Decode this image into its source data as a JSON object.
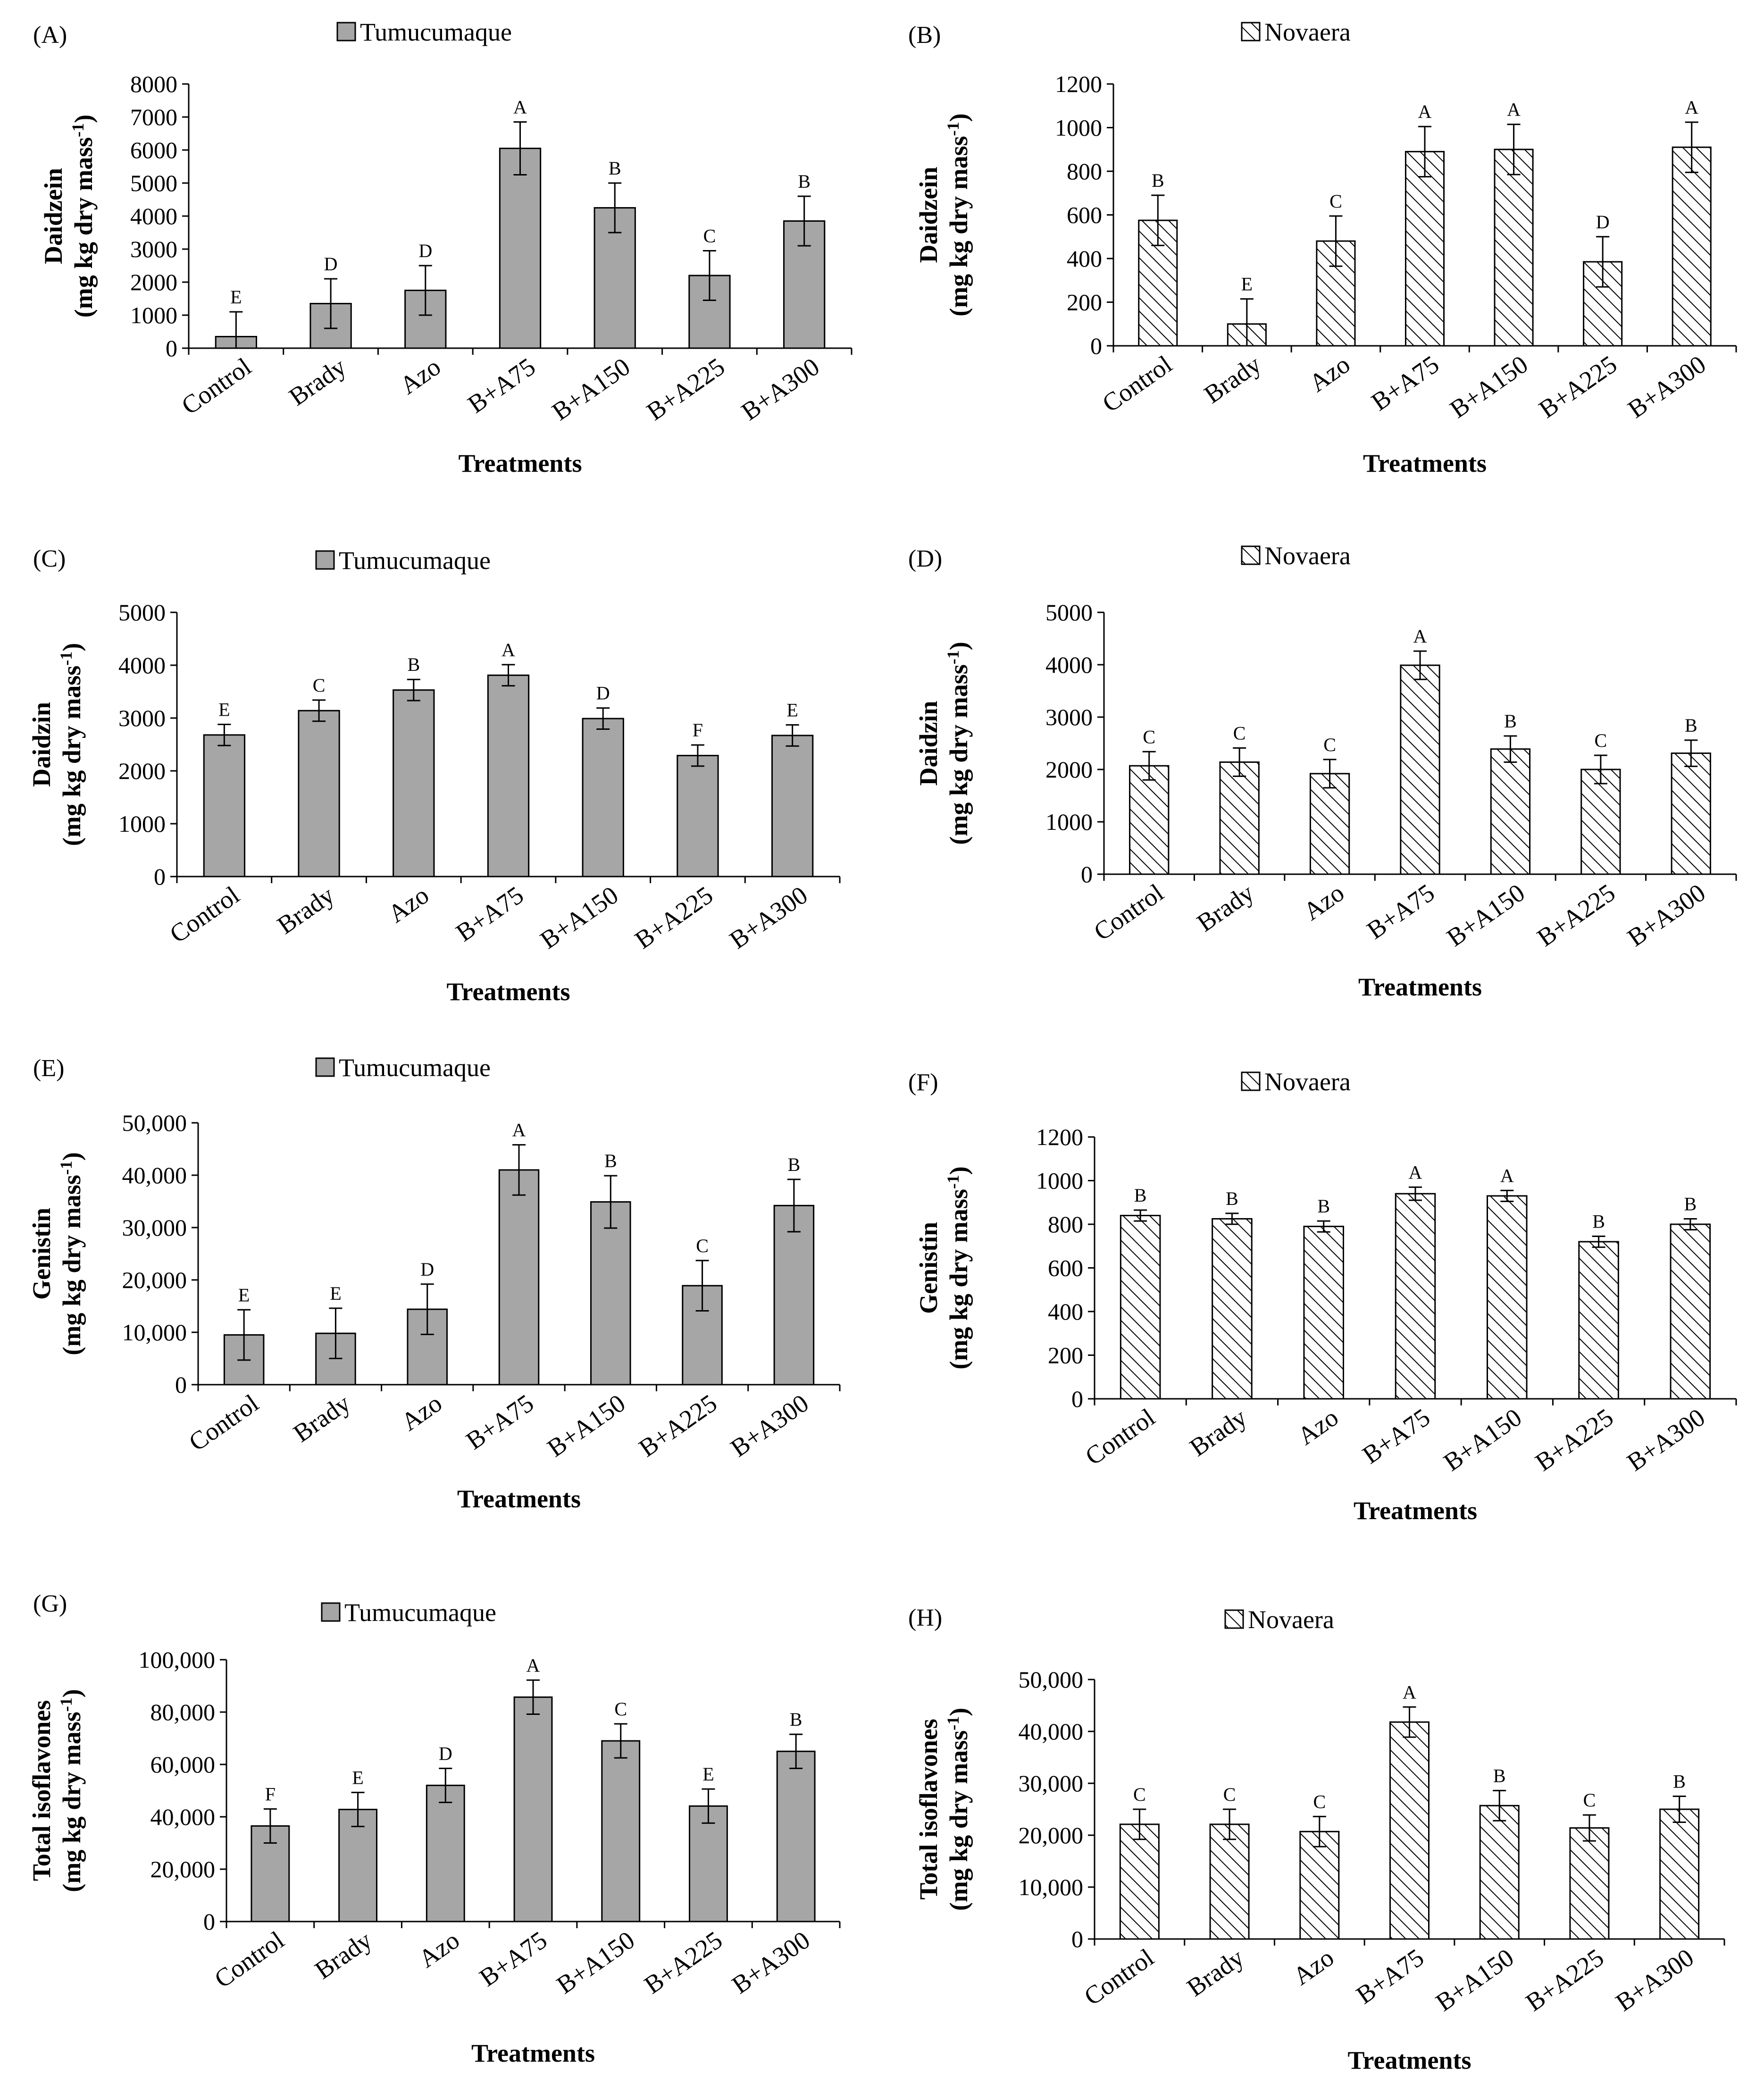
{
  "figure": {
    "colors": {
      "tumucumaque_fill": "#a6a6a6",
      "novaera_fill": "#ffffff",
      "stroke": "#000000"
    }
  },
  "chart_data": [
    {
      "type": "bar",
      "panel_label": "(A)",
      "legend": "Tumucumaque",
      "pattern": "solid",
      "title": "",
      "ylabel_line1": "Daidzein",
      "ylabel_line2": "(mg kg dry mass",
      "ylabel_sup": "-1",
      "ylabel_close": ")",
      "xlabel": "Treatments",
      "ylim": [
        0,
        8000
      ],
      "yticks": [
        0,
        1000,
        2000,
        3000,
        4000,
        5000,
        6000,
        7000,
        8000
      ],
      "ytick_labels": [
        "0",
        "1000",
        "2000",
        "3000",
        "4000",
        "5000",
        "6000",
        "7000",
        "8000"
      ],
      "categories": [
        "Control",
        "Brady",
        "Azo",
        "B+A75",
        "B+A150",
        "B+A225",
        "B+A300"
      ],
      "values": [
        350,
        1350,
        1750,
        6050,
        4250,
        2200,
        3850
      ],
      "errors": [
        750,
        750,
        750,
        800,
        750,
        750,
        750
      ],
      "letters": [
        "E",
        "D",
        "D",
        "A",
        "B",
        "C",
        "B"
      ]
    },
    {
      "type": "bar",
      "panel_label": "(B)",
      "legend": "Novaera",
      "pattern": "hatched",
      "title": "",
      "ylabel_line1": "Daidzein",
      "ylabel_line2": "(mg kg dry mass",
      "ylabel_sup": "-1",
      "ylabel_close": ")",
      "xlabel": "Treatments",
      "ylim": [
        0,
        1200
      ],
      "yticks": [
        0,
        200,
        400,
        600,
        800,
        1000,
        1200
      ],
      "ytick_labels": [
        "0",
        "200",
        "400",
        "600",
        "800",
        "1000",
        "1200"
      ],
      "categories": [
        "Control",
        "Brady",
        "Azo",
        "B+A75",
        "B+A150",
        "B+A225",
        "B+A300"
      ],
      "values": [
        575,
        100,
        480,
        890,
        900,
        385,
        910
      ],
      "errors": [
        115,
        115,
        115,
        115,
        115,
        115,
        115
      ],
      "letters": [
        "B",
        "E",
        "C",
        "A",
        "A",
        "D",
        "A"
      ]
    },
    {
      "type": "bar",
      "panel_label": "(C)",
      "legend": "Tumucumaque",
      "pattern": "solid",
      "title": "",
      "ylabel_line1": "Daidzin",
      "ylabel_line2": "(mg kg dry mass",
      "ylabel_sup": "-1",
      "ylabel_close": ")",
      "xlabel": "Treatments",
      "ylim": [
        0,
        5000
      ],
      "yticks": [
        0,
        1000,
        2000,
        3000,
        4000,
        5000
      ],
      "ytick_labels": [
        "0",
        "1000",
        "2000",
        "3000",
        "4000",
        "5000"
      ],
      "categories": [
        "Control",
        "Brady",
        "Azo",
        "B+A75",
        "B+A150",
        "B+A225",
        "B+A300"
      ],
      "values": [
        2680,
        3140,
        3530,
        3810,
        2990,
        2290,
        2670
      ],
      "errors": [
        200,
        200,
        200,
        200,
        200,
        200,
        200
      ],
      "letters": [
        "E",
        "C",
        "B",
        "A",
        "D",
        "F",
        "E"
      ]
    },
    {
      "type": "bar",
      "panel_label": "(D)",
      "legend": "Novaera",
      "pattern": "hatched",
      "title": "",
      "ylabel_line1": "Daidzin",
      "ylabel_line2": "(mg kg dry mass",
      "ylabel_sup": "-1",
      "ylabel_close": ")",
      "xlabel": "Treatments",
      "ylim": [
        0,
        5000
      ],
      "yticks": [
        0,
        1000,
        2000,
        3000,
        4000,
        5000
      ],
      "ytick_labels": [
        "0",
        "1000",
        "2000",
        "3000",
        "4000",
        "5000"
      ],
      "categories": [
        "Control",
        "Brady",
        "Azo",
        "B+A75",
        "B+A150",
        "B+A225",
        "B+A300"
      ],
      "values": [
        2070,
        2140,
        1920,
        3990,
        2390,
        2000,
        2310
      ],
      "errors": [
        270,
        270,
        270,
        270,
        250,
        270,
        250
      ],
      "letters": [
        "C",
        "C",
        "C",
        "A",
        "B",
        "C",
        "B"
      ]
    },
    {
      "type": "bar",
      "panel_label": "(E)",
      "legend": "Tumucumaque",
      "pattern": "solid",
      "title": "",
      "ylabel_line1": "Genistin",
      "ylabel_line2": "(mg kg dry mass",
      "ylabel_sup": "-1",
      "ylabel_close": ")",
      "xlabel": "Treatments",
      "ylim": [
        0,
        50000
      ],
      "yticks": [
        0,
        10000,
        20000,
        30000,
        40000,
        50000
      ],
      "ytick_labels": [
        "0",
        "10,000",
        "20,000",
        "30,000",
        "40,000",
        "50,000"
      ],
      "categories": [
        "Control",
        "Brady",
        "Azo",
        "B+A75",
        "B+A150",
        "B+A225",
        "B+A300"
      ],
      "values": [
        9500,
        9800,
        14400,
        41000,
        34900,
        18900,
        34200
      ],
      "errors": [
        4800,
        4800,
        4800,
        4800,
        5000,
        4800,
        5000
      ],
      "letters": [
        "E",
        "E",
        "D",
        "A",
        "B",
        "C",
        "B"
      ]
    },
    {
      "type": "bar",
      "panel_label": "(F)",
      "legend": "Novaera",
      "pattern": "hatched",
      "title": "",
      "ylabel_line1": "Genistin",
      "ylabel_line2": "(mg kg dry mass",
      "ylabel_sup": "-1",
      "ylabel_close": ")",
      "xlabel": "Treatments",
      "ylim": [
        0,
        1200
      ],
      "yticks": [
        0,
        200,
        400,
        600,
        800,
        1000,
        1200
      ],
      "ytick_labels": [
        "0",
        "200",
        "400",
        "600",
        "800",
        "1000",
        "1200"
      ],
      "categories": [
        "Control",
        "Brady",
        "Azo",
        "B+A75",
        "B+A150",
        "B+A225",
        "B+A300"
      ],
      "values": [
        840,
        825,
        790,
        940,
        930,
        720,
        800
      ],
      "errors": [
        25,
        25,
        25,
        30,
        25,
        25,
        25
      ],
      "letters": [
        "B",
        "B",
        "B",
        "A",
        "A",
        "B",
        "B"
      ]
    },
    {
      "type": "bar",
      "panel_label": "(G)",
      "legend": "Tumucumaque",
      "pattern": "solid",
      "title": "",
      "ylabel_line1": "Total isoflavones",
      "ylabel_line2": "(mg kg dry mass",
      "ylabel_sup": "-1",
      "ylabel_close": ")",
      "xlabel": "Treatments",
      "ylim": [
        0,
        100000
      ],
      "yticks": [
        0,
        20000,
        40000,
        60000,
        80000,
        100000
      ],
      "ytick_labels": [
        "0",
        "20,000",
        "40,000",
        "60,000",
        "80,000",
        "100,000"
      ],
      "categories": [
        "Control",
        "Brady",
        "Azo",
        "B+A75",
        "B+A150",
        "B+A225",
        "B+A300"
      ],
      "values": [
        36500,
        42800,
        52000,
        85700,
        69000,
        44100,
        65000
      ],
      "errors": [
        6500,
        6500,
        6500,
        6500,
        6500,
        6500,
        6500
      ],
      "letters": [
        "F",
        "E",
        "D",
        "A",
        "C",
        "E",
        "B"
      ]
    },
    {
      "type": "bar",
      "panel_label": "(H)",
      "legend": "Novaera",
      "pattern": "hatched",
      "title": "",
      "ylabel_line1": "Total isoflavones",
      "ylabel_line2": "(mg kg dry mass",
      "ylabel_sup": "-1",
      "ylabel_close": ")",
      "xlabel": "Treatments",
      "ylim": [
        0,
        50000
      ],
      "yticks": [
        0,
        10000,
        20000,
        30000,
        40000,
        50000
      ],
      "ytick_labels": [
        "0",
        "10,000",
        "20,000",
        "30,000",
        "40,000",
        "50,000"
      ],
      "categories": [
        "Control",
        "Brady",
        "Azo",
        "B+A75",
        "B+A150",
        "B+A225",
        "B+A300"
      ],
      "values": [
        22100,
        22100,
        20700,
        41800,
        25700,
        21400,
        25000
      ],
      "errors": [
        2900,
        2900,
        2900,
        2900,
        2900,
        2500,
        2500
      ],
      "letters": [
        "C",
        "C",
        "C",
        "A",
        "B",
        "C",
        "B"
      ]
    }
  ]
}
